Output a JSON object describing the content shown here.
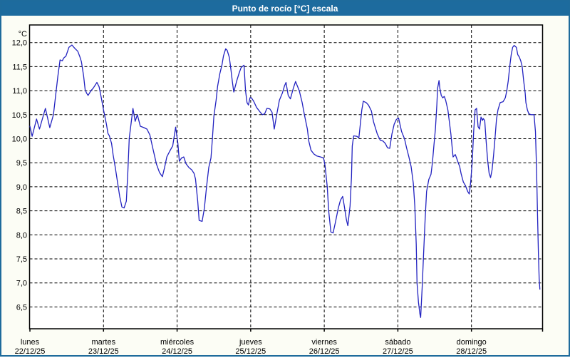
{
  "window": {
    "title": "Punto de rocío [°C] escala"
  },
  "colors": {
    "titlebar_bg": "#1d6b9e",
    "titlebar_text": "#ffffff",
    "frame_border": "#1e6b9c",
    "page_bg": "#fcfdf5",
    "plot_bg": "#ffffff",
    "grid": "#000000",
    "axis": "#000000",
    "line": "#2222c0"
  },
  "chart_data": {
    "type": "line",
    "title": "Punto de rocío [°C] escala",
    "y_unit_label": "°C",
    "ylabel": "Punto de rocío [°C]",
    "y_ticks": [
      12.0,
      11.5,
      11.0,
      10.5,
      10.0,
      9.5,
      9.0,
      8.5,
      8.0,
      7.5,
      7.0,
      6.5
    ],
    "y_tick_labels": [
      "12,0",
      "11,5",
      "11,0",
      "10,5",
      "10,0",
      "9,5",
      "9,0",
      "8,5",
      "8,0",
      "7,5",
      "7,0",
      "6,5"
    ],
    "ylim": [
      6.05,
      12.37
    ],
    "grid": "dashed",
    "legend_position": "none",
    "x_days": [
      {
        "name": "lunes",
        "date": "22/12/25"
      },
      {
        "name": "martes",
        "date": "23/12/25"
      },
      {
        "name": "miércoles",
        "date": "24/12/25"
      },
      {
        "name": "jueves",
        "date": "25/12/25"
      },
      {
        "name": "viernes",
        "date": "26/12/25"
      },
      {
        "name": "sábado",
        "date": "27/12/25"
      },
      {
        "name": "domingo",
        "date": "28/12/25"
      }
    ],
    "series": [
      {
        "name": "Punto de rocío",
        "color": "#2222c0",
        "x_unit": "days_since_lunes_22_12_25",
        "points": [
          [
            0,
            10.26
          ],
          [
            0.03,
            10.05
          ],
          [
            0.09,
            10.41
          ],
          [
            0.13,
            10.2
          ],
          [
            0.21,
            10.63
          ],
          [
            0.27,
            10.23
          ],
          [
            0.32,
            10.5
          ],
          [
            0.35,
            10.9
          ],
          [
            0.38,
            11.3
          ],
          [
            0.41,
            11.64
          ],
          [
            0.44,
            11.62
          ],
          [
            0.46,
            11.68
          ],
          [
            0.49,
            11.72
          ],
          [
            0.53,
            11.9
          ],
          [
            0.57,
            11.95
          ],
          [
            0.61,
            11.88
          ],
          [
            0.65,
            11.82
          ],
          [
            0.68,
            11.7
          ],
          [
            0.7,
            11.6
          ],
          [
            0.73,
            11.3
          ],
          [
            0.75,
            11.02
          ],
          [
            0.77,
            10.95
          ],
          [
            0.79,
            10.9
          ],
          [
            0.83,
            11.0
          ],
          [
            0.86,
            11.05
          ],
          [
            0.91,
            11.17
          ],
          [
            0.94,
            11.08
          ],
          [
            0.97,
            10.85
          ],
          [
            1.0,
            10.6
          ],
          [
            1.04,
            10.3
          ],
          [
            1.06,
            10.11
          ],
          [
            1.08,
            10.06
          ],
          [
            1.11,
            9.9
          ],
          [
            1.13,
            9.67
          ],
          [
            1.16,
            9.4
          ],
          [
            1.19,
            9.1
          ],
          [
            1.22,
            8.8
          ],
          [
            1.25,
            8.58
          ],
          [
            1.28,
            8.56
          ],
          [
            1.31,
            8.7
          ],
          [
            1.33,
            9.3
          ],
          [
            1.35,
            10.01
          ],
          [
            1.4,
            10.63
          ],
          [
            1.43,
            10.36
          ],
          [
            1.46,
            10.5
          ],
          [
            1.5,
            10.26
          ],
          [
            1.55,
            10.23
          ],
          [
            1.59,
            10.2
          ],
          [
            1.63,
            10.08
          ],
          [
            1.67,
            9.8
          ],
          [
            1.72,
            9.47
          ],
          [
            1.76,
            9.3
          ],
          [
            1.8,
            9.21
          ],
          [
            1.83,
            9.4
          ],
          [
            1.86,
            9.62
          ],
          [
            1.9,
            9.74
          ],
          [
            1.94,
            9.85
          ],
          [
            1.98,
            10.24
          ],
          [
            2.01,
            9.91
          ],
          [
            2.03,
            9.53
          ],
          [
            2.06,
            9.6
          ],
          [
            2.09,
            9.62
          ],
          [
            2.12,
            9.48
          ],
          [
            2.16,
            9.4
          ],
          [
            2.2,
            9.35
          ],
          [
            2.23,
            9.28
          ],
          [
            2.25,
            9.16
          ],
          [
            2.28,
            8.7
          ],
          [
            2.3,
            8.3
          ],
          [
            2.34,
            8.28
          ],
          [
            2.37,
            8.55
          ],
          [
            2.4,
            9.0
          ],
          [
            2.43,
            9.4
          ],
          [
            2.46,
            9.6
          ],
          [
            2.48,
            10.0
          ],
          [
            2.5,
            10.47
          ],
          [
            2.53,
            10.8
          ],
          [
            2.55,
            11.09
          ],
          [
            2.58,
            11.35
          ],
          [
            2.61,
            11.54
          ],
          [
            2.63,
            11.72
          ],
          [
            2.66,
            11.87
          ],
          [
            2.68,
            11.84
          ],
          [
            2.71,
            11.69
          ],
          [
            2.73,
            11.45
          ],
          [
            2.75,
            11.2
          ],
          [
            2.77,
            10.97
          ],
          [
            2.81,
            11.2
          ],
          [
            2.84,
            11.35
          ],
          [
            2.87,
            11.48
          ],
          [
            2.91,
            11.53
          ],
          [
            2.93,
            11.0
          ],
          [
            2.95,
            10.75
          ],
          [
            2.97,
            10.7
          ],
          [
            2.99,
            10.85
          ],
          [
            3.01,
            10.85
          ],
          [
            3.04,
            10.78
          ],
          [
            3.08,
            10.65
          ],
          [
            3.13,
            10.55
          ],
          [
            3.16,
            10.5
          ],
          [
            3.19,
            10.52
          ],
          [
            3.22,
            10.63
          ],
          [
            3.26,
            10.62
          ],
          [
            3.29,
            10.55
          ],
          [
            3.32,
            10.2
          ],
          [
            3.35,
            10.47
          ],
          [
            3.39,
            10.8
          ],
          [
            3.43,
            10.95
          ],
          [
            3.46,
            11.1
          ],
          [
            3.48,
            11.17
          ],
          [
            3.51,
            10.9
          ],
          [
            3.54,
            10.83
          ],
          [
            3.58,
            11.05
          ],
          [
            3.61,
            11.19
          ],
          [
            3.66,
            11.0
          ],
          [
            3.7,
            10.75
          ],
          [
            3.73,
            10.5
          ],
          [
            3.77,
            10.2
          ],
          [
            3.79,
            9.95
          ],
          [
            3.82,
            9.76
          ],
          [
            3.86,
            9.68
          ],
          [
            3.9,
            9.64
          ],
          [
            3.95,
            9.62
          ],
          [
            3.99,
            9.6
          ],
          [
            4.01,
            9.44
          ],
          [
            4.04,
            9.0
          ],
          [
            4.06,
            8.5
          ],
          [
            4.09,
            8.06
          ],
          [
            4.12,
            8.04
          ],
          [
            4.15,
            8.25
          ],
          [
            4.19,
            8.55
          ],
          [
            4.22,
            8.72
          ],
          [
            4.25,
            8.8
          ],
          [
            4.27,
            8.62
          ],
          [
            4.3,
            8.32
          ],
          [
            4.32,
            8.19
          ],
          [
            4.35,
            8.6
          ],
          [
            4.37,
            9.2
          ],
          [
            4.38,
            9.85
          ],
          [
            4.4,
            10.06
          ],
          [
            4.44,
            10.05
          ],
          [
            4.47,
            10.02
          ],
          [
            4.49,
            10.3
          ],
          [
            4.51,
            10.6
          ],
          [
            4.53,
            10.78
          ],
          [
            4.57,
            10.75
          ],
          [
            4.6,
            10.7
          ],
          [
            4.64,
            10.58
          ],
          [
            4.67,
            10.35
          ],
          [
            4.72,
            10.1
          ],
          [
            4.76,
            9.97
          ],
          [
            4.8,
            9.95
          ],
          [
            4.83,
            9.9
          ],
          [
            4.86,
            9.81
          ],
          [
            4.89,
            9.8
          ],
          [
            4.92,
            10.1
          ],
          [
            4.95,
            10.3
          ],
          [
            4.98,
            10.4
          ],
          [
            5.01,
            10.43
          ],
          [
            5.05,
            10.15
          ],
          [
            5.09,
            10.0
          ],
          [
            5.12,
            9.8
          ],
          [
            5.15,
            9.62
          ],
          [
            5.18,
            9.42
          ],
          [
            5.21,
            9.07
          ],
          [
            5.23,
            8.6
          ],
          [
            5.25,
            7.8
          ],
          [
            5.26,
            7.0
          ],
          [
            5.28,
            6.6
          ],
          [
            5.3,
            6.35
          ],
          [
            5.31,
            6.28
          ],
          [
            5.33,
            6.9
          ],
          [
            5.35,
            7.6
          ],
          [
            5.37,
            8.3
          ],
          [
            5.39,
            8.9
          ],
          [
            5.42,
            9.15
          ],
          [
            5.45,
            9.26
          ],
          [
            5.47,
            9.5
          ],
          [
            5.49,
            9.86
          ],
          [
            5.51,
            10.2
          ],
          [
            5.53,
            10.7
          ],
          [
            5.54,
            11.05
          ],
          [
            5.56,
            11.21
          ],
          [
            5.57,
            11.05
          ],
          [
            5.59,
            10.9
          ],
          [
            5.61,
            10.85
          ],
          [
            5.63,
            10.88
          ],
          [
            5.65,
            10.8
          ],
          [
            5.68,
            10.6
          ],
          [
            5.7,
            10.35
          ],
          [
            5.72,
            10.1
          ],
          [
            5.74,
            9.79
          ],
          [
            5.75,
            9.62
          ],
          [
            5.78,
            9.67
          ],
          [
            5.8,
            9.59
          ],
          [
            5.82,
            9.5
          ],
          [
            5.84,
            9.42
          ],
          [
            5.86,
            9.27
          ],
          [
            5.89,
            9.1
          ],
          [
            5.92,
            9.02
          ],
          [
            5.95,
            8.9
          ],
          [
            5.97,
            8.85
          ],
          [
            5.99,
            9.1
          ],
          [
            6.01,
            9.5
          ],
          [
            6.03,
            10.15
          ],
          [
            6.05,
            10.6
          ],
          [
            6.07,
            10.63
          ],
          [
            6.09,
            10.25
          ],
          [
            6.11,
            10.2
          ],
          [
            6.13,
            10.45
          ],
          [
            6.15,
            10.38
          ],
          [
            6.16,
            10.42
          ],
          [
            6.18,
            10.38
          ],
          [
            6.2,
            9.95
          ],
          [
            6.22,
            9.55
          ],
          [
            6.24,
            9.28
          ],
          [
            6.26,
            9.19
          ],
          [
            6.28,
            9.35
          ],
          [
            6.3,
            9.65
          ],
          [
            6.32,
            10.0
          ],
          [
            6.34,
            10.4
          ],
          [
            6.36,
            10.6
          ],
          [
            6.39,
            10.75
          ],
          [
            6.43,
            10.77
          ],
          [
            6.46,
            10.85
          ],
          [
            6.48,
            11.0
          ],
          [
            6.5,
            11.2
          ],
          [
            6.52,
            11.5
          ],
          [
            6.54,
            11.75
          ],
          [
            6.56,
            11.9
          ],
          [
            6.58,
            11.94
          ],
          [
            6.61,
            11.9
          ],
          [
            6.63,
            11.75
          ],
          [
            6.65,
            11.7
          ],
          [
            6.67,
            11.62
          ],
          [
            6.69,
            11.5
          ],
          [
            6.71,
            11.2
          ],
          [
            6.73,
            10.95
          ],
          [
            6.74,
            10.75
          ],
          [
            6.76,
            10.6
          ],
          [
            6.78,
            10.52
          ],
          [
            6.81,
            10.5
          ],
          [
            6.85,
            10.5
          ],
          [
            6.87,
            10.15
          ],
          [
            6.88,
            9.6
          ],
          [
            6.89,
            9.0
          ],
          [
            6.9,
            8.3
          ],
          [
            6.91,
            7.6
          ],
          [
            6.92,
            7.1
          ],
          [
            6.93,
            6.87
          ]
        ]
      }
    ]
  }
}
